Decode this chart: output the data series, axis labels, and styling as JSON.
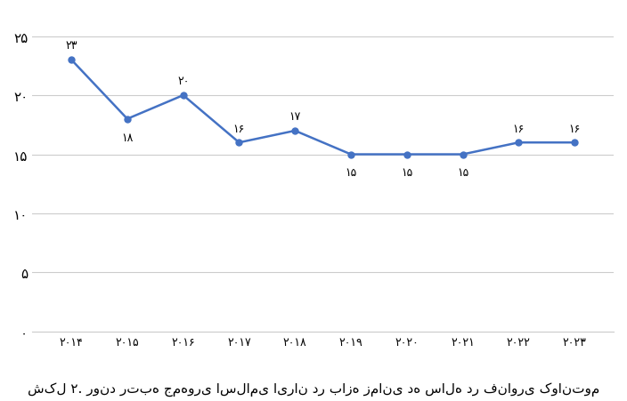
{
  "years": [
    2014,
    2015,
    2016,
    2017,
    2018,
    2019,
    2020,
    2021,
    2022,
    2023
  ],
  "values": [
    23,
    18,
    20,
    16,
    17,
    15,
    15,
    15,
    16,
    16
  ],
  "year_labels_fa": [
    "۲۰۱۴",
    "۲۰۱۵",
    "۲۰۱۶",
    "۲۰۱۷",
    "۲۰۱۸",
    "۲۰۱۹",
    "۲۰۲۰",
    "۲۰۲۱",
    "۲۰۲۲",
    "۲۰۲۳"
  ],
  "ytick_labels_fa": [
    "۰",
    "۵",
    "۱۰",
    "۱۵",
    "۲۰",
    "۲۵"
  ],
  "ytick_values": [
    0,
    5,
    10,
    15,
    20,
    25
  ],
  "point_labels": [
    "۲۳",
    "۱۸",
    "۲۰",
    "۱۶",
    "۱۷",
    "۱۵",
    "۱۵",
    "۱۵",
    "۱۶",
    "۱۶"
  ],
  "label_offsets_y": [
    7,
    -10,
    7,
    7,
    7,
    -10,
    -10,
    -10,
    7,
    7
  ],
  "line_color": "#4472C4",
  "marker_color": "#4472C4",
  "background_color": "#FFFFFF",
  "plot_bg_color": "#FFFFFF",
  "caption": "شکل ۲. روند رتبه جمهوری اسلامی ایران در بازه زمانی ده ساله در فناوری کوانتوم",
  "ylim": [
    0,
    27
  ],
  "xlim": [
    2013.3,
    2023.7
  ],
  "grid_color": "#CCCCCC",
  "line_width": 1.8,
  "marker_size": 5
}
